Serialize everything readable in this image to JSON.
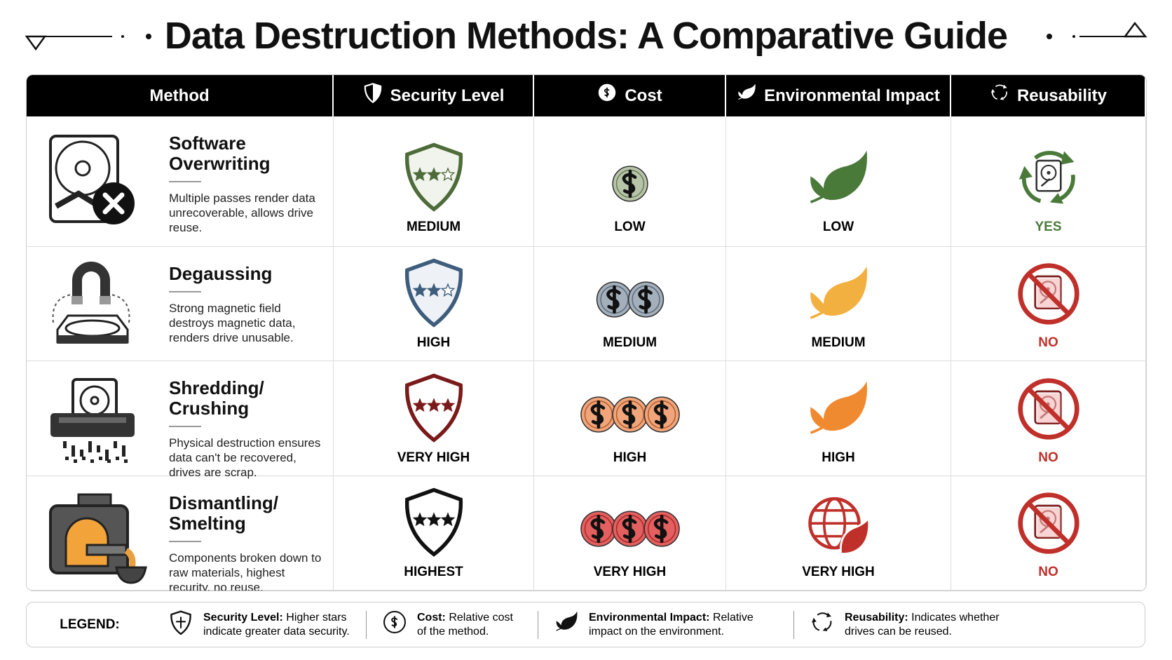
{
  "header": {
    "title": "Data Destruction Methods: A Comparative Guide"
  },
  "table": {
    "columns": [
      "Method",
      "Security Level",
      "Cost",
      "Environmental Impact",
      "Reusability"
    ],
    "rows": [
      {
        "name": "Software Overwriting",
        "description": "Multiple passes render data unrecoverable, allows drive reuse.",
        "security": "MEDIUM",
        "cost": "LOW",
        "environmental_impact": "LOW",
        "reusability": "YES"
      },
      {
        "name": "Degaussing",
        "description": "Strong magnetic field destroys magnetic data, renders drive unusable.",
        "security": "HIGH",
        "cost": "MEDIUM",
        "environmental_impact": "MEDIUM",
        "reusability": "NO"
      },
      {
        "name": "Shredding/ Crushing",
        "description": "Physical destruction ensures data can't be recovered, drives are scrap.",
        "security": "VERY HIGH",
        "cost": "HIGH",
        "environmental_impact": "HIGH",
        "reusability": "NO"
      },
      {
        "name": "Dismantling/ Smelting",
        "description": "Components broken down to raw materials, highest recurity, no reuse.",
        "security": "HIGHEST",
        "cost": "VERY HIGH",
        "environmental_impact": "VERY HIGH",
        "reusability": "NO"
      }
    ]
  },
  "legend": {
    "label": "LEGEND:",
    "items": [
      {
        "term": "Security Level:",
        "text": "Higher stars indicate greater data security."
      },
      {
        "term": "Cost:",
        "text": "Relative cost of the method."
      },
      {
        "term": "Environmental Impact:",
        "text": "Relative impact on the environment."
      },
      {
        "term": "Reusability:",
        "text": "Indicates whether drives can be reused."
      }
    ]
  }
}
